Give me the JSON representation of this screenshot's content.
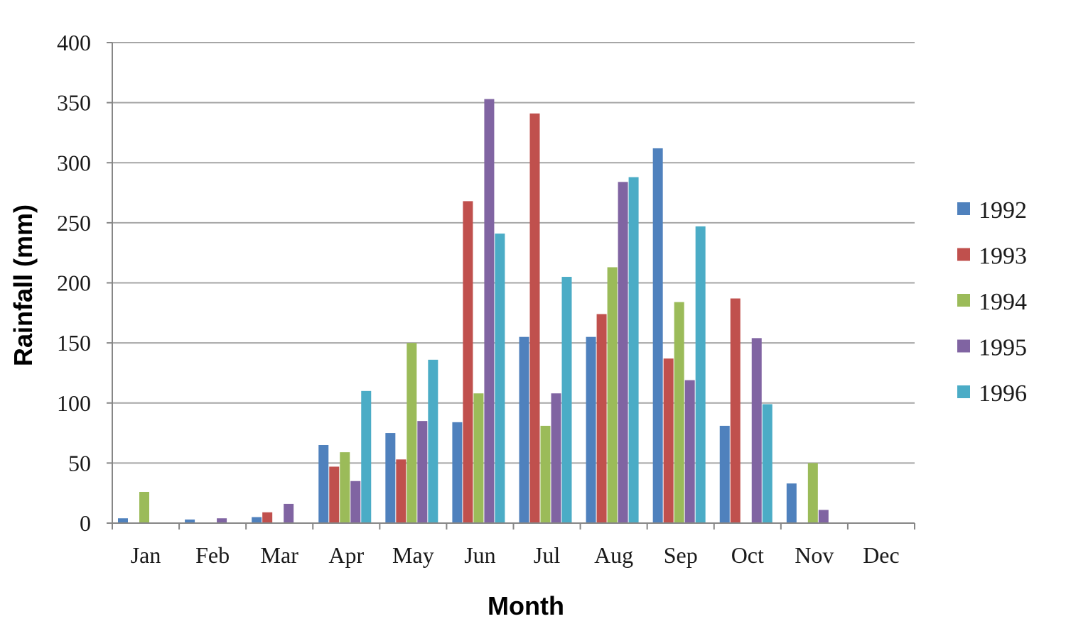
{
  "chart_data": {
    "type": "bar",
    "title": "",
    "xlabel": "Month",
    "ylabel": "Rainfall (mm)",
    "ylim": [
      0,
      400
    ],
    "yticks": [
      0,
      50,
      100,
      150,
      200,
      250,
      300,
      350,
      400
    ],
    "grid": true,
    "legend_position": "right",
    "categories": [
      "Jan",
      "Feb",
      "Mar",
      "Apr",
      "May",
      "Jun",
      "Jul",
      "Aug",
      "Sep",
      "Oct",
      "Nov",
      "Dec"
    ],
    "series": [
      {
        "name": "1992",
        "color": "#4f81bd",
        "values": [
          4,
          3,
          5,
          65,
          75,
          84,
          155,
          155,
          312,
          81,
          33,
          0
        ]
      },
      {
        "name": "1993",
        "color": "#c0504d",
        "values": [
          0,
          0,
          9,
          47,
          53,
          268,
          341,
          174,
          137,
          187,
          0,
          0
        ]
      },
      {
        "name": "1994",
        "color": "#9bbb59",
        "values": [
          26,
          0,
          0,
          59,
          150,
          108,
          81,
          213,
          184,
          0,
          50,
          0
        ]
      },
      {
        "name": "1995",
        "color": "#8064a2",
        "values": [
          0,
          4,
          16,
          35,
          85,
          353,
          108,
          284,
          119,
          154,
          11,
          0
        ]
      },
      {
        "name": "1996",
        "color": "#4bacc6",
        "values": [
          0,
          0,
          0,
          110,
          136,
          241,
          205,
          288,
          247,
          99,
          0,
          0
        ]
      }
    ]
  }
}
